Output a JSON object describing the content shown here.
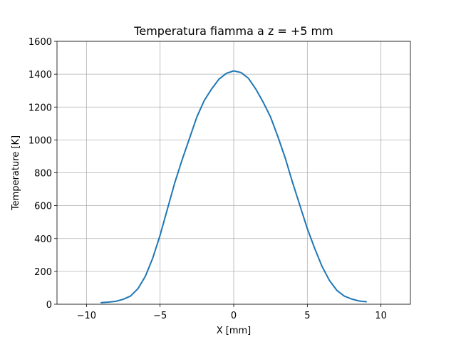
{
  "chart_data": {
    "type": "line",
    "title": "Temperatura fiamma a z = +5 mm",
    "xlabel": "X [mm]",
    "ylabel": "Temperature [K]",
    "xlim": [
      -12,
      12
    ],
    "ylim": [
      0,
      1600
    ],
    "xticks": [
      -10,
      -5,
      0,
      5,
      10
    ],
    "yticks": [
      0,
      200,
      400,
      600,
      800,
      1000,
      1200,
      1400,
      1600
    ],
    "grid": true,
    "color": "#1f77b4",
    "series": [
      {
        "x": [
          -9.0,
          -8.5,
          -8.0,
          -7.5,
          -7.0,
          -6.5,
          -6.0,
          -5.5,
          -5.0,
          -4.5,
          -4.0,
          -3.5,
          -3.0,
          -2.5,
          -2.0,
          -1.5,
          -1.0,
          -0.5,
          0.0,
          0.5,
          1.0,
          1.5,
          2.0,
          2.5,
          3.0,
          3.5,
          4.0,
          4.5,
          5.0,
          5.5,
          6.0,
          6.5,
          7.0,
          7.5,
          8.0,
          8.5,
          9.0
        ],
        "y": [
          10,
          13,
          18,
          30,
          50,
          95,
          170,
          280,
          420,
          580,
          740,
          880,
          1010,
          1140,
          1240,
          1310,
          1370,
          1405,
          1420,
          1410,
          1375,
          1310,
          1230,
          1140,
          1020,
          890,
          740,
          600,
          460,
          340,
          230,
          145,
          85,
          50,
          32,
          20,
          15
        ]
      }
    ]
  }
}
